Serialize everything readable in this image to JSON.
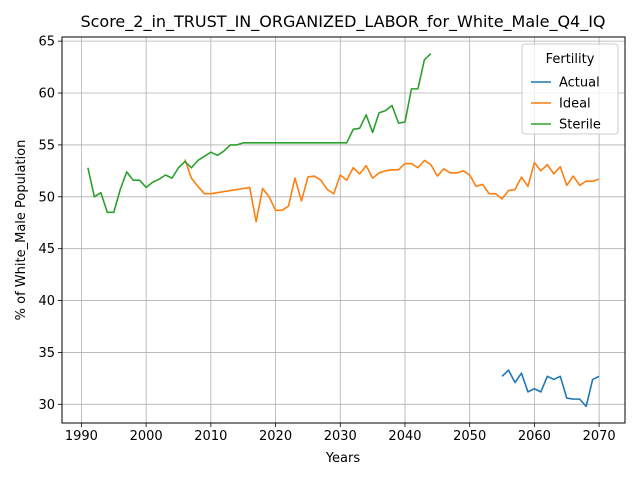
{
  "chart_data": {
    "type": "line",
    "title": "Score_2_in_TRUST_IN_ORGANIZED_LABOR_for_White_Male_Q4_IQ",
    "xlabel": "Years",
    "ylabel": "% of White_Male Population",
    "xlim": [
      1987,
      2074
    ],
    "ylim": [
      28.2,
      65.4
    ],
    "xticks": [
      1990,
      2000,
      2010,
      2020,
      2030,
      2040,
      2050,
      2060,
      2070
    ],
    "yticks": [
      30,
      35,
      40,
      45,
      50,
      55,
      60,
      65
    ],
    "grid": true,
    "legend": {
      "title": "Fertility",
      "position": "top-right"
    },
    "series": [
      {
        "name": "Actual",
        "color": "#1f77b4",
        "x": [
          2055,
          2056,
          2057,
          2058,
          2059,
          2060,
          2061,
          2062,
          2063,
          2064,
          2065,
          2066,
          2067,
          2068,
          2069,
          2070
        ],
        "y": [
          32.7,
          33.3,
          32.1,
          33.0,
          31.2,
          31.5,
          31.2,
          32.7,
          32.4,
          32.7,
          30.6,
          30.5,
          30.5,
          29.8,
          32.4,
          32.7
        ]
      },
      {
        "name": "Ideal",
        "color": "#ff7f0e",
        "x": [
          2006,
          2007,
          2008,
          2009,
          2010,
          2011,
          2012,
          2013,
          2014,
          2015,
          2016,
          2017,
          2018,
          2019,
          2020,
          2021,
          2022,
          2023,
          2024,
          2025,
          2026,
          2027,
          2028,
          2029,
          2030,
          2031,
          2032,
          2033,
          2034,
          2035,
          2036,
          2037,
          2038,
          2039,
          2040,
          2041,
          2042,
          2043,
          2044,
          2045,
          2046,
          2047,
          2048,
          2049,
          2050,
          2051,
          2052,
          2053,
          2054,
          2055,
          2056,
          2057,
          2058,
          2059,
          2060,
          2061,
          2062,
          2063,
          2064,
          2065,
          2066,
          2067,
          2068,
          2069,
          2070
        ],
        "y": [
          53.6,
          51.8,
          51.0,
          50.3,
          50.3,
          50.4,
          50.5,
          50.6,
          50.7,
          50.8,
          50.9,
          47.6,
          50.8,
          50.0,
          48.7,
          48.7,
          49.1,
          51.8,
          49.6,
          51.9,
          52.0,
          51.6,
          50.7,
          50.3,
          52.1,
          51.6,
          52.8,
          52.2,
          53.0,
          51.8,
          52.3,
          52.5,
          52.6,
          52.6,
          53.2,
          53.2,
          52.8,
          53.5,
          53.1,
          52.0,
          52.7,
          52.3,
          52.3,
          52.5,
          52.1,
          51.0,
          51.2,
          50.3,
          50.3,
          49.8,
          50.6,
          50.7,
          51.9,
          51.0,
          53.3,
          52.5,
          53.1,
          52.2,
          52.9,
          51.1,
          52.0,
          51.1,
          51.5,
          51.5,
          51.7
        ]
      },
      {
        "name": "Sterile",
        "color": "#2ca02c",
        "x": [
          1991,
          1992,
          1993,
          1994,
          1995,
          1996,
          1997,
          1998,
          1999,
          2000,
          2001,
          2002,
          2003,
          2004,
          2005,
          2006,
          2007,
          2008,
          2009,
          2010,
          2011,
          2012,
          2013,
          2014,
          2015,
          2016,
          2017,
          2018,
          2019,
          2020,
          2021,
          2022,
          2023,
          2024,
          2025,
          2026,
          2027,
          2028,
          2029,
          2030,
          2031,
          2032,
          2033,
          2034,
          2035,
          2036,
          2037,
          2038,
          2039,
          2040,
          2041,
          2042,
          2043,
          2044
        ],
        "y": [
          52.8,
          50.0,
          50.4,
          48.5,
          48.5,
          50.7,
          52.4,
          51.6,
          51.6,
          50.9,
          51.4,
          51.7,
          52.1,
          51.8,
          52.8,
          53.4,
          52.8,
          53.5,
          53.9,
          54.3,
          54.0,
          54.4,
          55.0,
          55.0,
          55.2,
          55.2,
          55.2,
          55.2,
          55.2,
          55.2,
          55.2,
          55.2,
          55.2,
          55.2,
          55.2,
          55.2,
          55.2,
          55.2,
          55.2,
          55.2,
          55.2,
          56.5,
          56.6,
          57.9,
          56.2,
          58.1,
          58.3,
          58.8,
          57.1,
          57.2,
          60.4,
          60.4,
          63.2,
          63.8
        ]
      }
    ]
  }
}
